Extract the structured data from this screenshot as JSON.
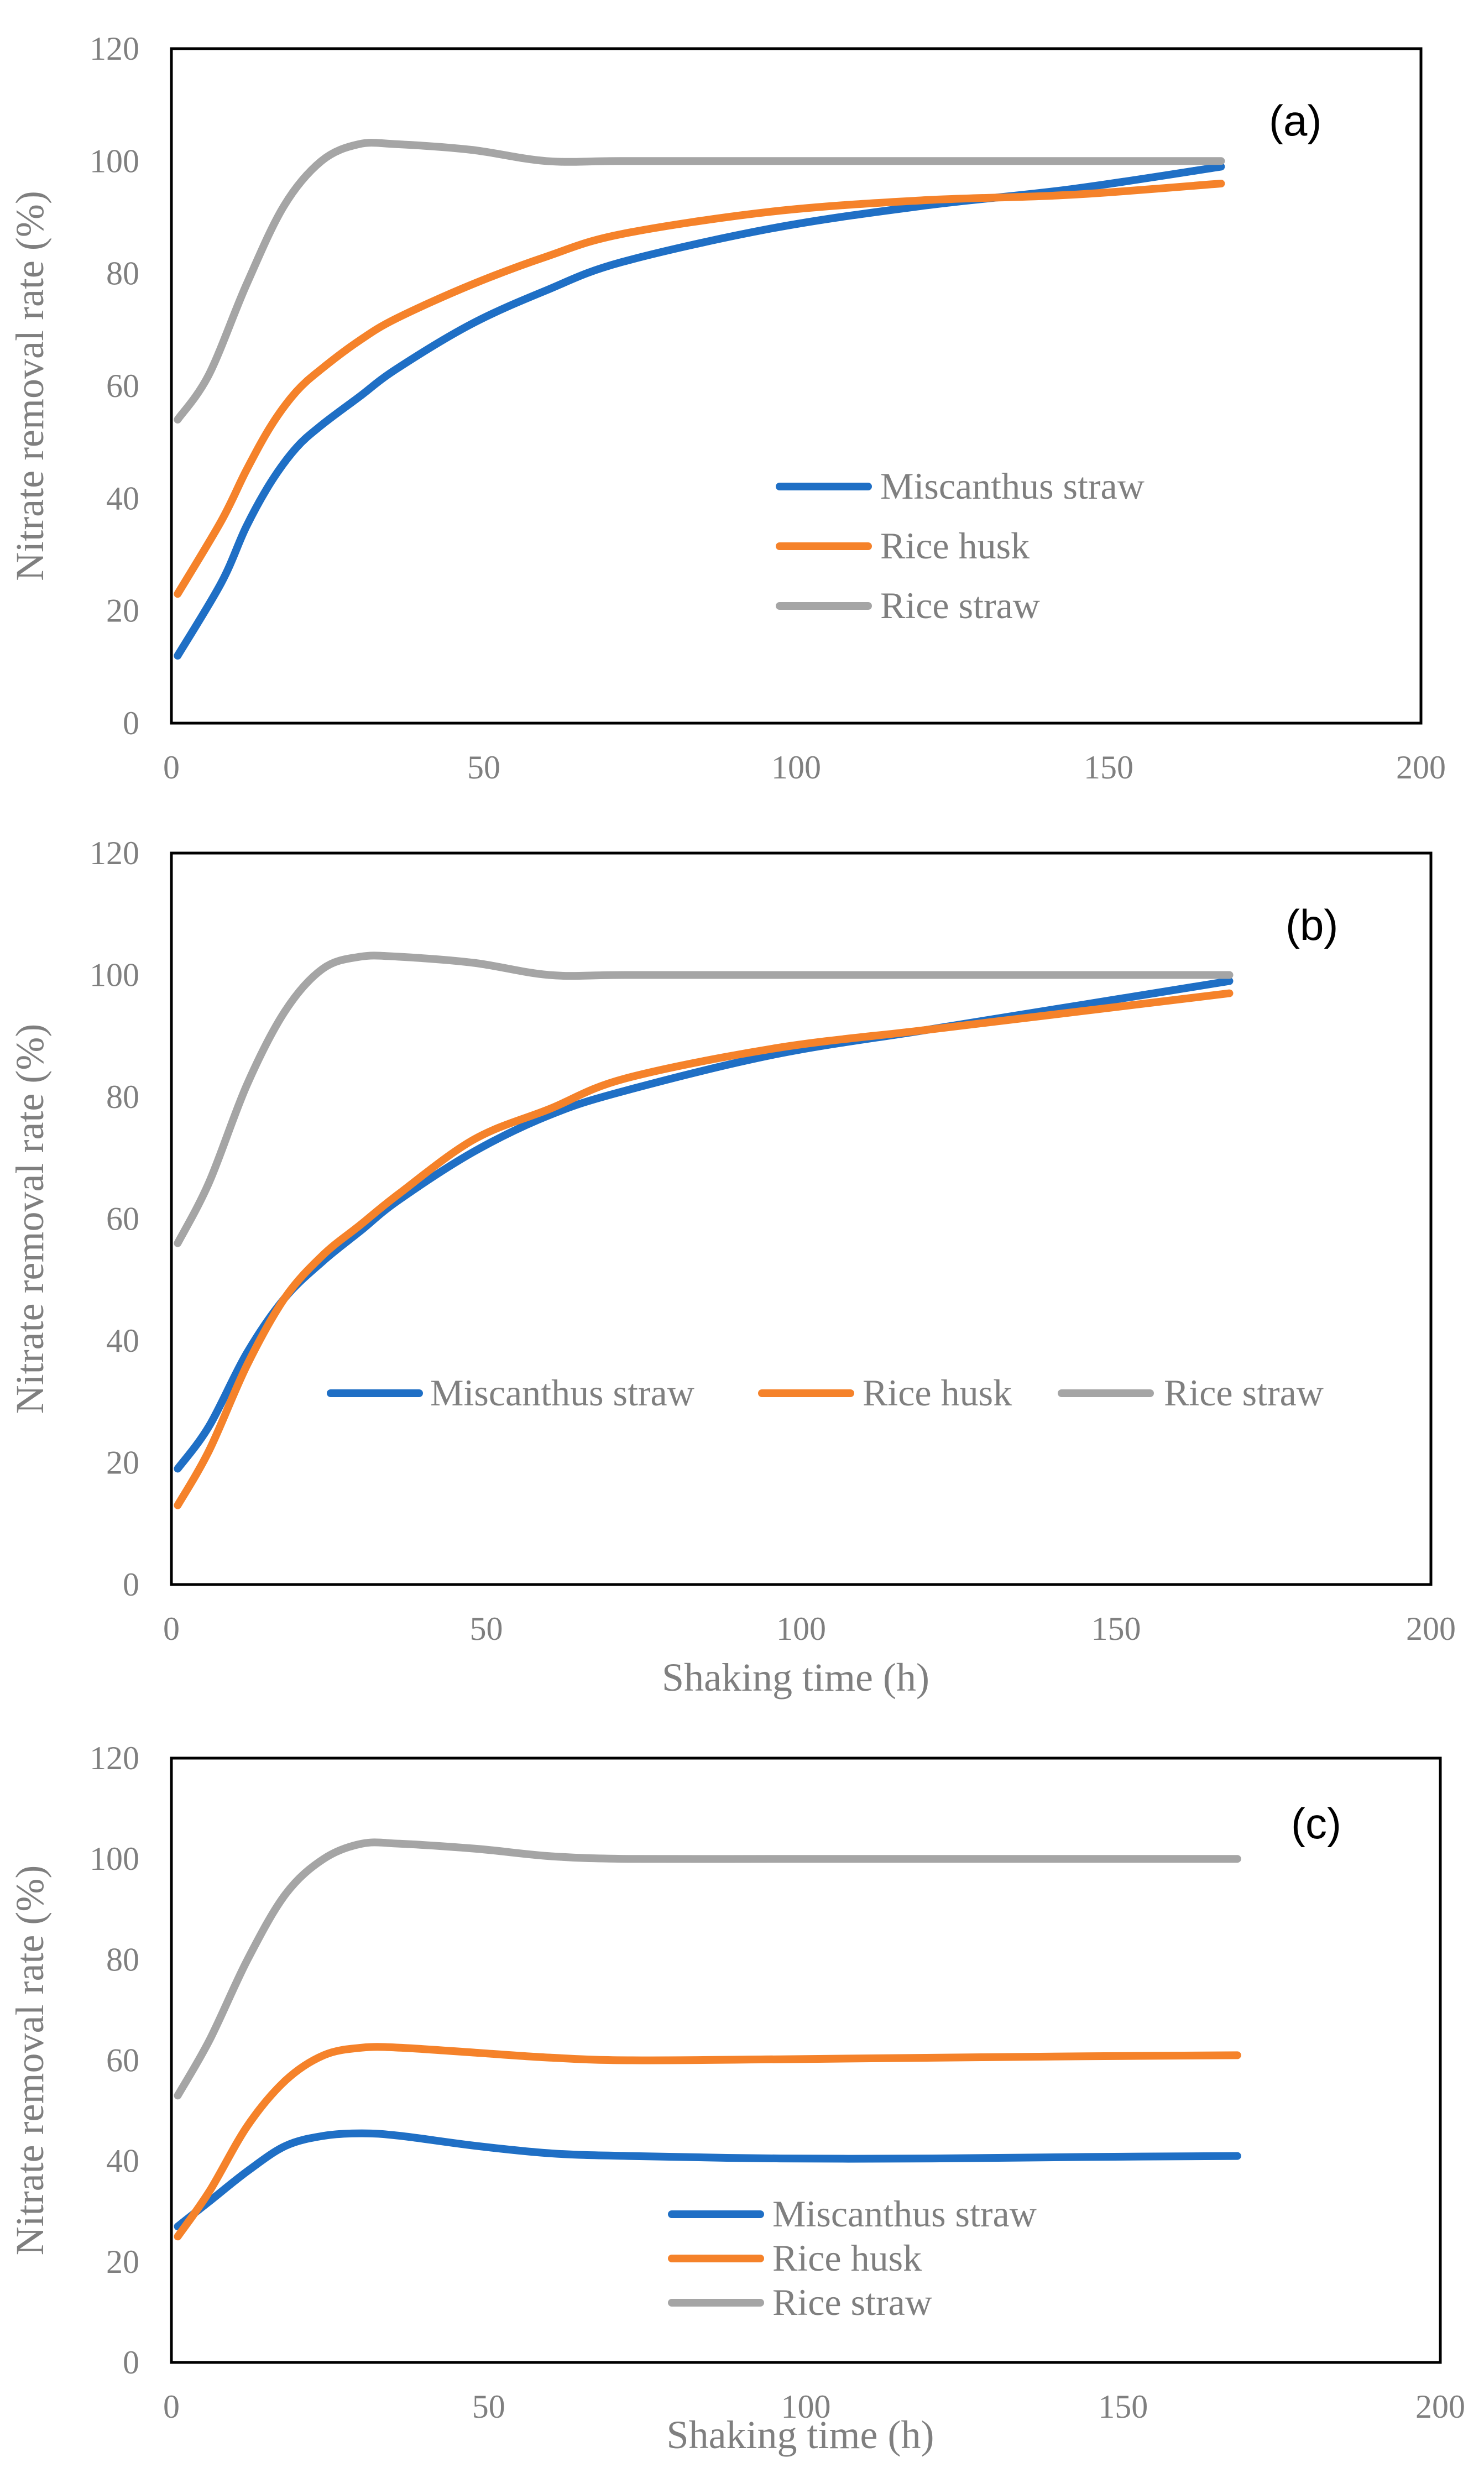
{
  "figure": {
    "colors": {
      "miscanthus": "#1f6fc5",
      "rice_husk": "#f5822a",
      "rice_straw": "#a5a5a5",
      "axis": "#000000",
      "text": "#7f7f7f"
    }
  },
  "chart_data": [
    {
      "type": "line",
      "panel_label": "(a)",
      "xlabel": "",
      "ylabel": "Nitrate removal rate (%)",
      "xlim": [
        0,
        200
      ],
      "ylim": [
        0,
        120
      ],
      "xticks": [
        0,
        50,
        100,
        150,
        200
      ],
      "yticks": [
        0,
        20,
        40,
        60,
        80,
        100,
        120
      ],
      "legend_position": "center-right stacked",
      "series": [
        {
          "name": "Miscanthus straw",
          "x": [
            1,
            8,
            12,
            16,
            20,
            24,
            30,
            36,
            48,
            60,
            72,
            96,
            120,
            144,
            168
          ],
          "y": [
            12,
            25,
            35,
            43,
            49,
            53,
            58,
            63,
            71,
            77,
            82,
            88,
            92,
            95,
            99
          ]
        },
        {
          "name": "Rice husk",
          "x": [
            1,
            8,
            12,
            16,
            20,
            24,
            30,
            36,
            48,
            60,
            72,
            96,
            120,
            144,
            168
          ],
          "y": [
            23,
            36,
            45,
            53,
            59,
            63,
            68,
            72,
            78,
            83,
            87,
            91,
            93,
            94,
            96
          ]
        },
        {
          "name": "Rice straw",
          "x": [
            1,
            6,
            12,
            18,
            24,
            30,
            36,
            48,
            60,
            72,
            96,
            120,
            144,
            168
          ],
          "y": [
            54,
            62,
            78,
            92,
            100,
            103,
            103,
            102,
            100,
            100,
            100,
            100,
            100,
            100
          ]
        }
      ]
    },
    {
      "type": "line",
      "panel_label": "(b)",
      "xlabel": "Shaking time (h)",
      "ylabel": "Nitrate removal rate (%)",
      "xlim": [
        0,
        200
      ],
      "ylim": [
        0,
        120
      ],
      "xticks": [
        0,
        50,
        100,
        150,
        200
      ],
      "yticks": [
        0,
        20,
        40,
        60,
        80,
        100,
        120
      ],
      "legend_position": "center single row",
      "series": [
        {
          "name": "Miscanthus straw",
          "x": [
            1,
            6,
            12,
            18,
            24,
            30,
            36,
            48,
            60,
            72,
            96,
            120,
            144,
            168
          ],
          "y": [
            19,
            26,
            38,
            47,
            53,
            58,
            63,
            71,
            77,
            81,
            87,
            91,
            95,
            99
          ]
        },
        {
          "name": "Rice husk",
          "x": [
            1,
            6,
            12,
            18,
            24,
            30,
            36,
            48,
            60,
            72,
            96,
            120,
            144,
            168
          ],
          "y": [
            13,
            22,
            36,
            47,
            54,
            59,
            64,
            73,
            78,
            83,
            88,
            91,
            94,
            97
          ]
        },
        {
          "name": "Rice straw",
          "x": [
            1,
            6,
            12,
            18,
            24,
            30,
            36,
            48,
            60,
            72,
            96,
            120,
            144,
            168
          ],
          "y": [
            56,
            66,
            82,
            94,
            101,
            103,
            103,
            102,
            100,
            100,
            100,
            100,
            100,
            100
          ]
        }
      ]
    },
    {
      "type": "line",
      "panel_label": "(c)",
      "xlabel": "Shaking time (h)",
      "ylabel": "Nitrate removal rate (%)",
      "xlim": [
        0,
        200
      ],
      "ylim": [
        0,
        120
      ],
      "xticks": [
        0,
        50,
        100,
        150,
        200
      ],
      "yticks": [
        0,
        20,
        40,
        60,
        80,
        100,
        120
      ],
      "legend_position": "lower center stacked",
      "series": [
        {
          "name": "Miscanthus straw",
          "x": [
            1,
            6,
            12,
            18,
            24,
            30,
            36,
            48,
            60,
            72,
            96,
            120,
            144,
            168
          ],
          "y": [
            27,
            32,
            38,
            43,
            45,
            45.5,
            45,
            43,
            41.5,
            41,
            40.5,
            40.5,
            40.8,
            41
          ]
        },
        {
          "name": "Rice husk",
          "x": [
            1,
            6,
            12,
            18,
            24,
            30,
            36,
            48,
            60,
            72,
            96,
            120,
            144,
            168
          ],
          "y": [
            25,
            34,
            47,
            56,
            61,
            62.5,
            62.5,
            61.5,
            60.5,
            60,
            60.2,
            60.5,
            60.8,
            61
          ]
        },
        {
          "name": "Rice straw",
          "x": [
            1,
            6,
            12,
            18,
            24,
            30,
            36,
            48,
            60,
            72,
            96,
            120,
            144,
            168
          ],
          "y": [
            53,
            64,
            80,
            93,
            100,
            103,
            103,
            102,
            100.5,
            100,
            100,
            100,
            100,
            100
          ]
        }
      ]
    }
  ]
}
